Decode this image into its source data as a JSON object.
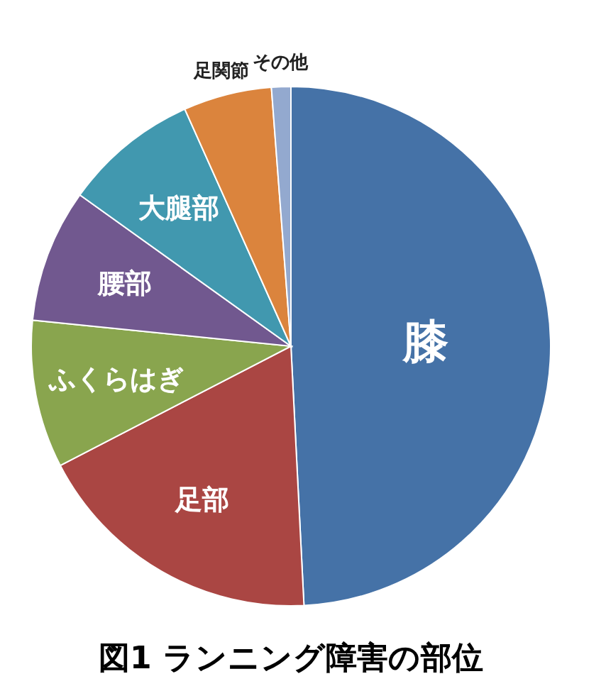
{
  "chart_data": {
    "type": "pie",
    "title": "図1  ランニング障害の部位",
    "categories": [
      "膝",
      "足部",
      "ふくらはぎ",
      "腰部",
      "大腿部",
      "足関節",
      "その他"
    ],
    "values": [
      49.2,
      18.2,
      9.2,
      8.3,
      8.4,
      5.5,
      1.2
    ],
    "colors": [
      "#4572a7",
      "#aa4643",
      "#89a54e",
      "#71588f",
      "#4198af",
      "#db843d",
      "#93a9cf"
    ],
    "legend": false
  }
}
